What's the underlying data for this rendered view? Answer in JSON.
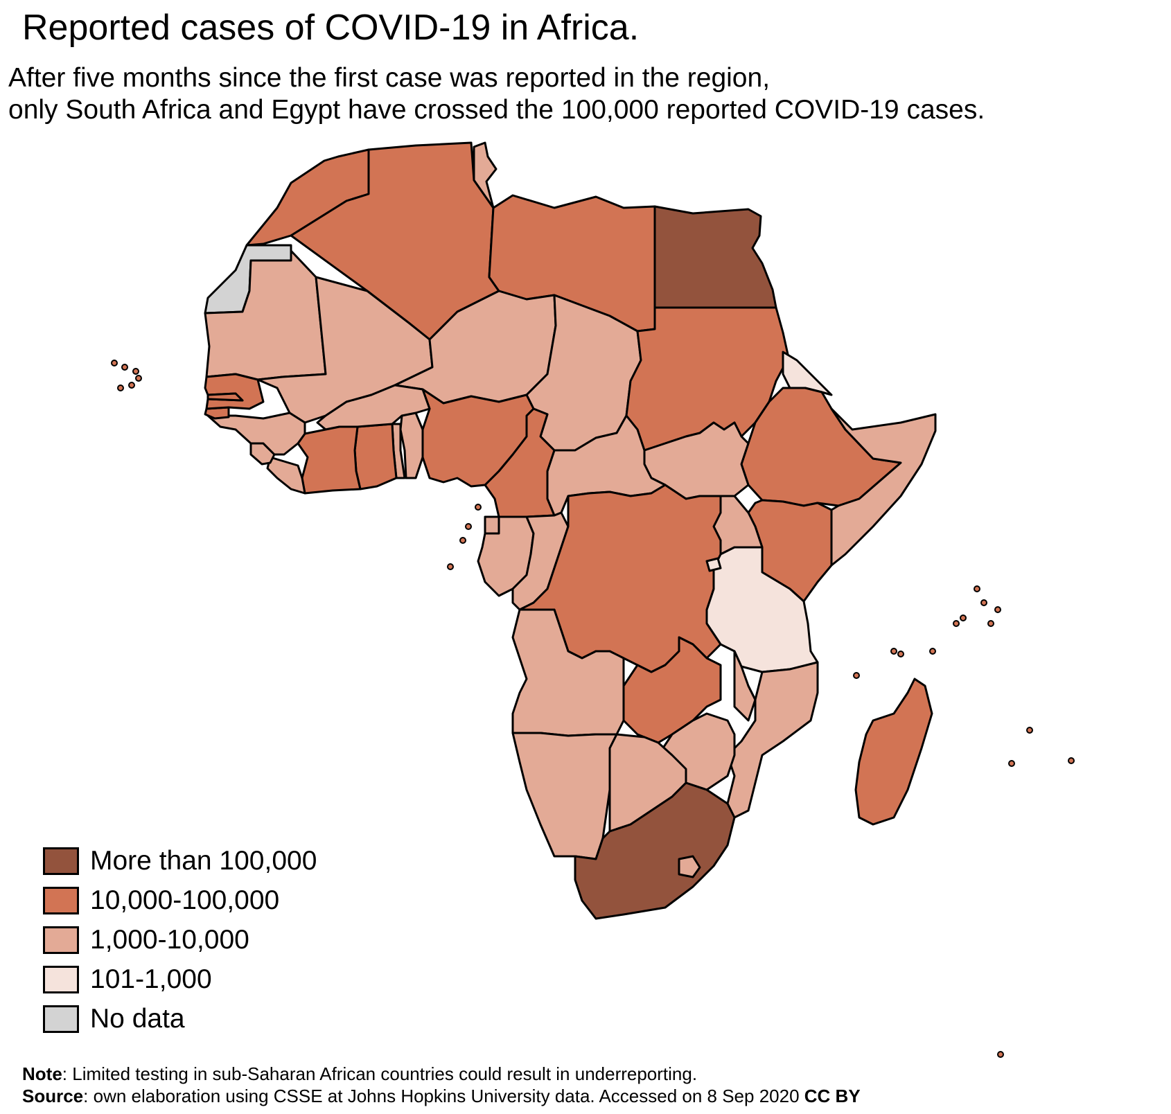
{
  "title": "Reported cases of COVID-19 in Africa.",
  "subtitle": {
    "line1": "After five months since the first case was reported in the region,",
    "line2": "only South Africa and Egypt have crossed the 100,000 reported COVID-19 cases."
  },
  "colors": {
    "more_than_100000": "#93533d",
    "range_10000_100000": "#d27454",
    "range_1000_10000": "#e3aa96",
    "range_101_1000": "#f5e3dc",
    "no_data": "#d3d3d3",
    "border": "#000000"
  },
  "legend": [
    {
      "label": "More than 100,000",
      "color": "#93533d"
    },
    {
      "label": "10,000-100,000",
      "color": "#d27454"
    },
    {
      "label": "1,000-10,000",
      "color": "#e3aa96"
    },
    {
      "label": "101-1,000",
      "color": "#f5e3dc"
    },
    {
      "label": "No data",
      "color": "#d3d3d3"
    }
  ],
  "footer": {
    "note_label": "Note",
    "note_text": ": Limited testing in sub-Saharan African countries could result in underreporting.",
    "source_label": "Source",
    "source_text": ": own elaboration using CSSE at Johns Hopkins University data.  Accessed on  8 Sep 2020 ",
    "license": "CC BY"
  }
}
